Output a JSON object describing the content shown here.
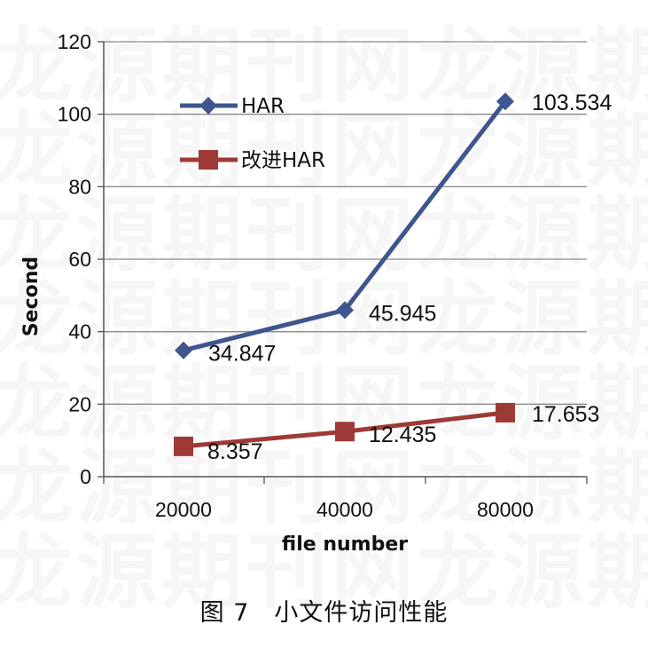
{
  "watermark": {
    "text": "龙源期刊网龙源期刊网"
  },
  "caption": "图 7　小文件访问性能",
  "chart_data": {
    "type": "line",
    "categories": [
      "20000",
      "40000",
      "80000"
    ],
    "xlabel": "file number",
    "ylabel": "Second",
    "ylim": [
      0,
      120
    ],
    "yticks": [
      0,
      20,
      40,
      60,
      80,
      100,
      120
    ],
    "grid": true,
    "legend_position": "top-left",
    "series": [
      {
        "name": "HAR",
        "values": [
          34.847,
          45.945,
          103.534
        ],
        "labels": [
          "34.847",
          "45.945",
          "103.534"
        ],
        "color": "#3F558F",
        "marker": "diamond"
      },
      {
        "name": "改进HAR",
        "values": [
          8.357,
          12.435,
          17.653
        ],
        "labels": [
          "8.357",
          "12.435",
          "17.653"
        ],
        "color": "#9E3A35",
        "marker": "square"
      }
    ]
  }
}
